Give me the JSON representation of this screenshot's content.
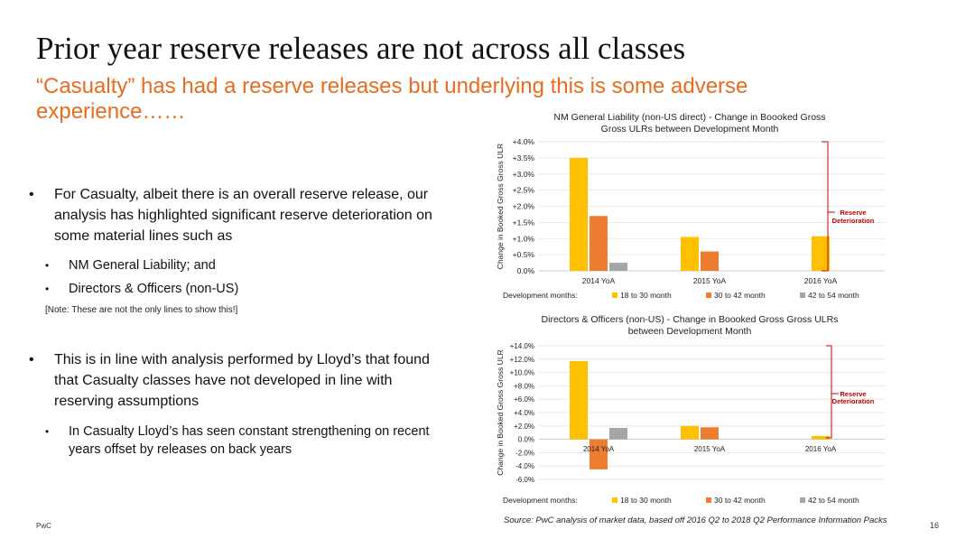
{
  "slide": {
    "title": "Prior year reserve releases are not across all classes",
    "subtitle": "“Casualty” has had a reserve releases but underlying this is some adverse experience……",
    "bullets": [
      {
        "text": "For Casualty, albeit there is an overall reserve release, our analysis has highlighted significant reserve deterioration on some material lines such as",
        "subitems": [
          "NM General Liability; and",
          "Directors & Officers (non-US)"
        ],
        "note": "[Note: These are not the only lines to show this!]"
      },
      {
        "text": "This is in line with analysis performed by Lloyd’s that found that Casualty classes have not developed in line with reserving assumptions",
        "subitems": [
          "In Casualty Lloyd’s has seen constant strengthening on recent years offset by releases on back years"
        ]
      }
    ],
    "bullet_char": "•",
    "sub_bullet_char": "•",
    "footer": "PwC",
    "source": "Source: PwC analysis of market data, based off 2016 Q2 to 2018 Q2 Performance Information Packs",
    "page_number": "16",
    "colors": {
      "title": "#111111",
      "subtitle": "#e86c1f",
      "bar_18_30": "#ffc000",
      "bar_30_42": "#ed7d31",
      "bar_42_54": "#a5a5a5",
      "annotation": "#c00000"
    }
  },
  "chart_data": [
    {
      "type": "bar",
      "title": "NM General Liability (non-US direct) - Change in Boooked Gross Gross ULRs between Development Month",
      "title_lines": [
        "NM General Liability (non-US direct) - Change in Boooked Gross",
        "Gross ULRs between Development Month"
      ],
      "ylabel": "Change in Booked Gross Gross ULR",
      "categories": [
        "2014 YoA",
        "2015 YoA",
        "2016 YoA"
      ],
      "series": [
        {
          "name": "18 to 30 month",
          "values": [
            3.5,
            1.05,
            1.07
          ]
        },
        {
          "name": "30 to 42 month",
          "values": [
            1.7,
            0.6,
            null
          ]
        },
        {
          "name": "42 to 54 month",
          "values": [
            0.25,
            null,
            null
          ]
        }
      ],
      "ylim": [
        0,
        4
      ],
      "yticks": [
        0,
        0.5,
        1,
        1.5,
        2,
        2.5,
        3,
        3.5,
        4
      ],
      "ytick_labels": [
        "0.0%",
        "+0.5%",
        "+1.0%",
        "+1.5%",
        "+2.0%",
        "+2.5%",
        "+3.0%",
        "+3.5%",
        "+4.0%"
      ],
      "legend_title": "Development months:",
      "legend_position": "bottom",
      "grid": true,
      "annotation": "Reserve Deterioration",
      "annotation_lines": [
        "Reserve",
        "Deterioration"
      ]
    },
    {
      "type": "bar",
      "title": "Directors & Officers (non-US) - Change in Boooked Gross Gross ULRs between Development Month",
      "title_lines": [
        "Directors & Officers (non-US) - Change in Boooked Gross Gross ULRs",
        "between Development Month"
      ],
      "ylabel": "Change in Booked Gross Gross ULR",
      "categories": [
        "2014 YoA",
        "2015 YoA",
        "2016 YoA"
      ],
      "series": [
        {
          "name": "18 to 30 month",
          "values": [
            11.7,
            2.0,
            0.5
          ]
        },
        {
          "name": "30 to 42 month",
          "values": [
            -4.5,
            1.8,
            null
          ]
        },
        {
          "name": "42 to 54 month",
          "values": [
            1.7,
            null,
            null
          ]
        }
      ],
      "ylim": [
        -6,
        14
      ],
      "yticks": [
        -6,
        -4,
        -2,
        0,
        2,
        4,
        6,
        8,
        10,
        12,
        14
      ],
      "ytick_labels": [
        "-6.0%",
        "-4.0%",
        "-2.0%",
        "0.0%",
        "+2.0%",
        "+4.0%",
        "+6.0%",
        "+8.0%",
        "+10.0%",
        "+12.0%",
        "+14.0%"
      ],
      "legend_title": "Development months:",
      "legend_position": "bottom",
      "grid": true,
      "annotation": "Reserve Deterioration",
      "annotation_lines": [
        "Reserve",
        "Deterioration"
      ]
    }
  ]
}
